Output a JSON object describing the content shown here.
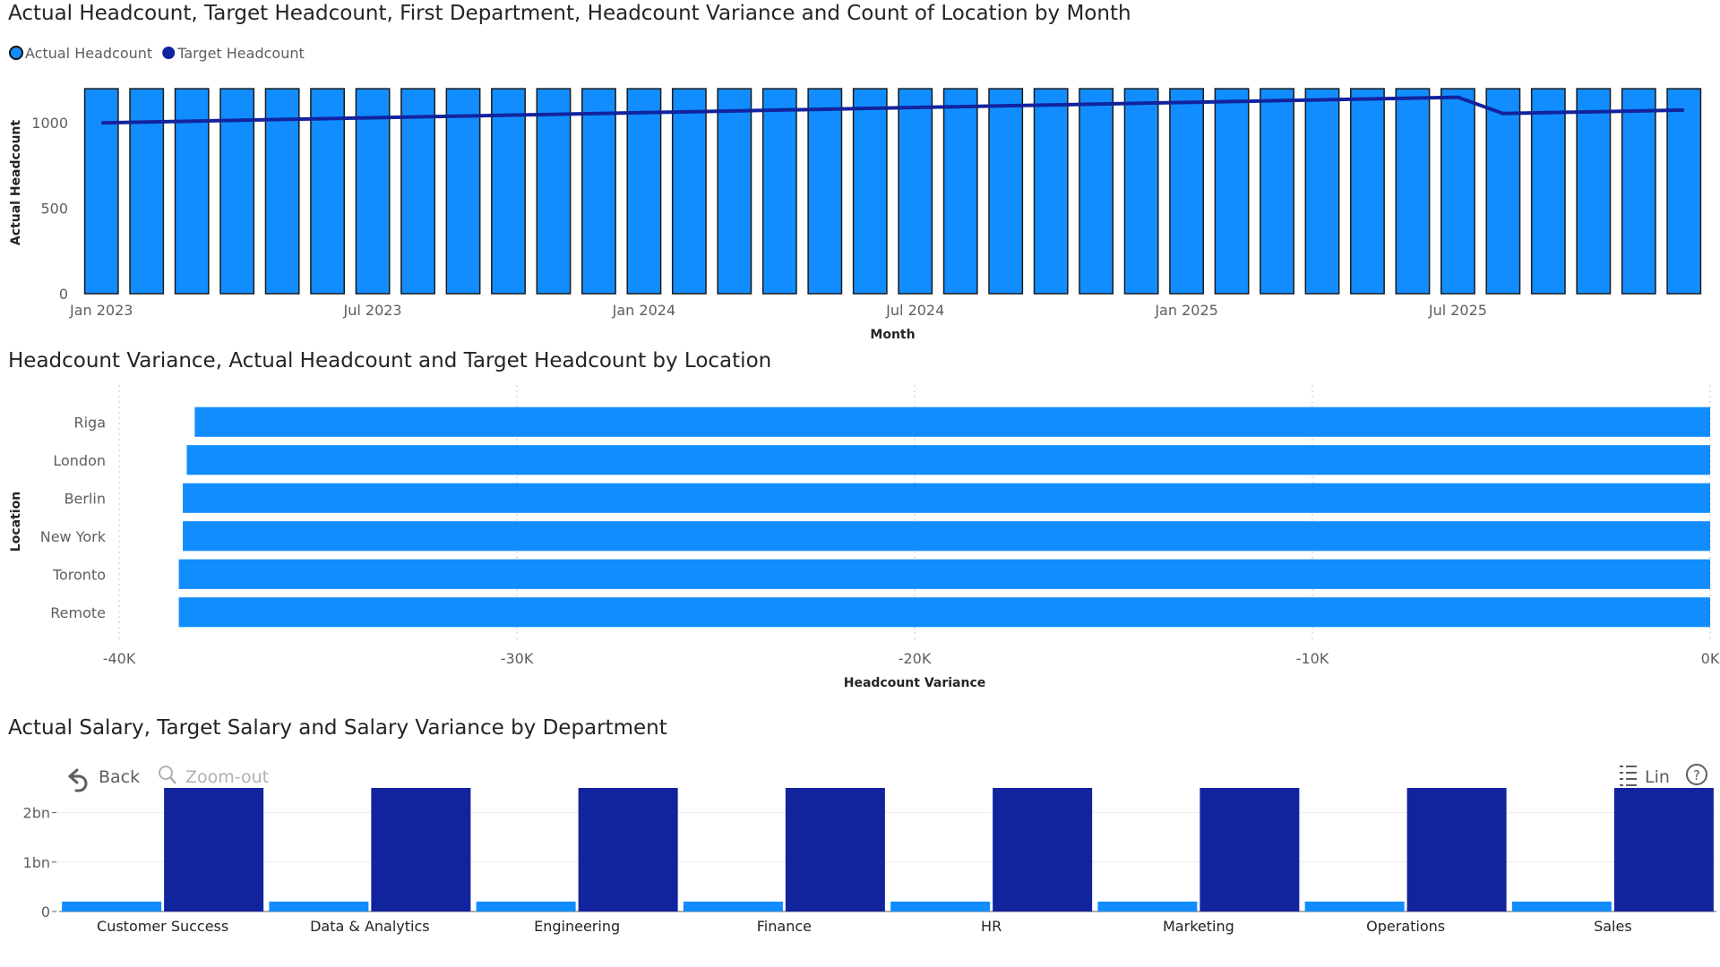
{
  "chart_data": [
    {
      "type": "bar+line",
      "title": "Actual Headcount, Target Headcount, First Department, Headcount Variance and Count of Location by Month",
      "xlabel": "Month",
      "ylabel": "Actual Headcount",
      "legend": {
        "placement": "top-left",
        "entries": [
          "Actual Headcount",
          "Target Headcount"
        ]
      },
      "x": [
        "Jan 2023",
        "Feb 2023",
        "Mar 2023",
        "Apr 2023",
        "May 2023",
        "Jun 2023",
        "Jul 2023",
        "Aug 2023",
        "Sep 2023",
        "Oct 2023",
        "Nov 2023",
        "Dec 2023",
        "Jan 2024",
        "Feb 2024",
        "Mar 2024",
        "Apr 2024",
        "May 2024",
        "Jun 2024",
        "Jul 2024",
        "Aug 2024",
        "Sep 2024",
        "Oct 2024",
        "Nov 2024",
        "Dec 2024",
        "Jan 2025",
        "Feb 2025",
        "Mar 2025",
        "Apr 2025",
        "May 2025",
        "Jun 2025",
        "Jul 2025",
        "Aug 2025",
        "Sep 2025",
        "Oct 2025",
        "Nov 2025",
        "Dec 2025"
      ],
      "x_ticks": [
        "Jan 2023",
        "Jul 2023",
        "Jan 2024",
        "Jul 2024",
        "Jan 2025",
        "Jul 2025"
      ],
      "y_ticks": [
        "0",
        "500",
        "1000"
      ],
      "ylim": [
        0,
        1300
      ],
      "series": [
        {
          "name": "Actual Headcount",
          "kind": "bar",
          "color": "#118DFF",
          "values": [
            1200,
            1200,
            1200,
            1200,
            1200,
            1200,
            1200,
            1200,
            1200,
            1200,
            1200,
            1200,
            1200,
            1200,
            1200,
            1200,
            1200,
            1200,
            1200,
            1200,
            1200,
            1200,
            1200,
            1200,
            1200,
            1200,
            1200,
            1200,
            1200,
            1200,
            1200,
            1200,
            1200,
            1200,
            1200,
            1200
          ]
        },
        {
          "name": "Target Headcount",
          "kind": "line",
          "color": "#12239E",
          "values": [
            1000,
            1005,
            1010,
            1015,
            1020,
            1025,
            1030,
            1035,
            1040,
            1045,
            1050,
            1055,
            1060,
            1065,
            1070,
            1075,
            1080,
            1085,
            1090,
            1095,
            1100,
            1105,
            1110,
            1115,
            1120,
            1125,
            1130,
            1135,
            1140,
            1145,
            1150,
            1055,
            1060,
            1065,
            1070,
            1075
          ]
        }
      ],
      "grid": false
    },
    {
      "type": "horizontal-bar",
      "title": "Headcount Variance, Actual Headcount and Target Headcount by Location",
      "xlabel": "Headcount Variance",
      "ylabel": "Location",
      "categories": [
        "Riga",
        "London",
        "Berlin",
        "New York",
        "Toronto",
        "Remote"
      ],
      "values": [
        -38100,
        -38300,
        -38400,
        -38400,
        -38500,
        -38500
      ],
      "x_ticks": [
        "-40K",
        "-30K",
        "-20K",
        "-10K",
        "0K"
      ],
      "xlim": [
        -40000,
        0
      ],
      "color": "#118DFF",
      "grid": true
    },
    {
      "type": "bar",
      "title": "Actual Salary, Target Salary and Salary Variance by Department",
      "categories": [
        "Customer Success",
        "Data & Analytics",
        "Engineering",
        "Finance",
        "HR",
        "Marketing",
        "Operations",
        "Sales"
      ],
      "y_ticks": [
        "0",
        "1bn",
        "2bn"
      ],
      "ylim": [
        0,
        2500000000
      ],
      "series": [
        {
          "color": "#118DFF",
          "values": [
            200000000,
            200000000,
            200000000,
            200000000,
            200000000,
            200000000,
            200000000,
            200000000
          ]
        },
        {
          "color": "#12239E",
          "values": [
            2500000000,
            2500000000,
            2500000000,
            2500000000,
            2500000000,
            2500000000,
            2500000000,
            2500000000
          ]
        }
      ],
      "toolbar": {
        "back": "Back",
        "zoom_out": "Zoom-out",
        "scale": "Lin"
      },
      "grid": true
    }
  ]
}
